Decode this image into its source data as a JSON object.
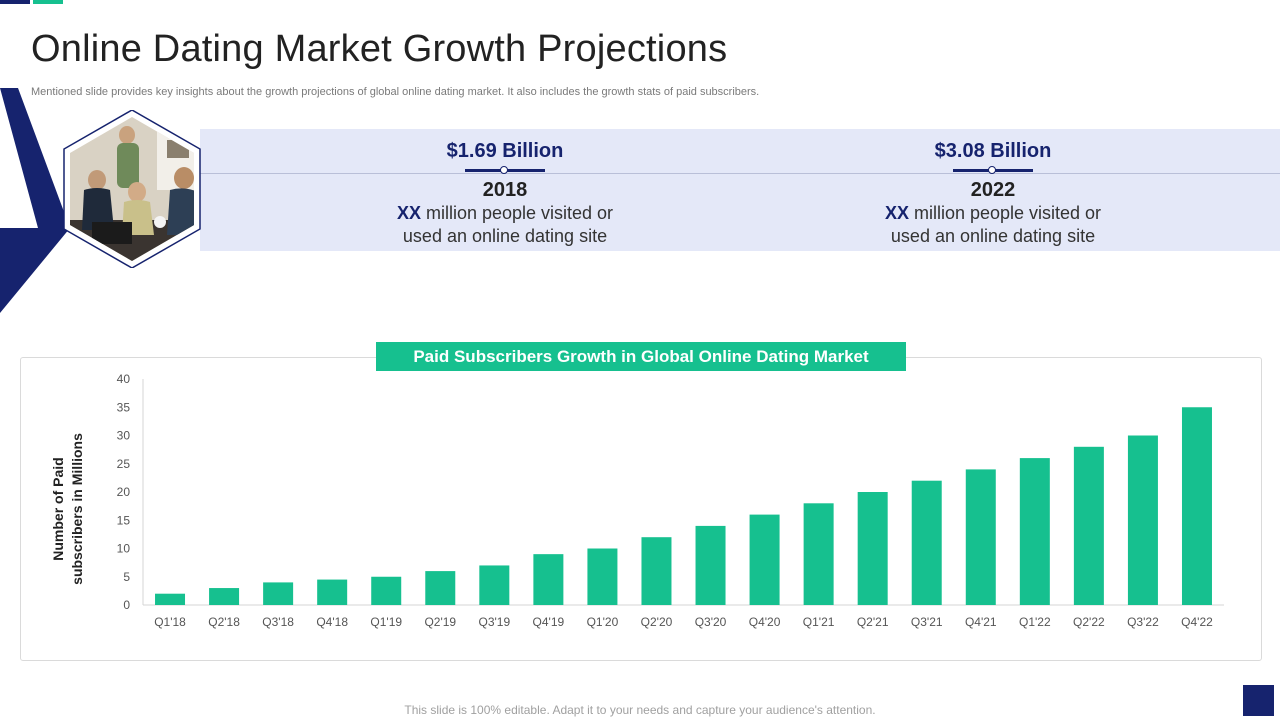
{
  "page": {
    "title": "Online Dating Market Growth Projections",
    "subtitle": "Mentioned slide provides key insights about the growth projections of global online dating market. It also includes the growth  stats of paid subscribers.",
    "footer": "This slide is 100% editable. Adapt it to your needs and capture your audience's attention."
  },
  "stats": [
    {
      "amount": "$1.69 Billion",
      "year": "2018",
      "highlight": "XX",
      "desc_line1": " million people visited or",
      "desc_line2": "used an online dating site"
    },
    {
      "amount": "$3.08 Billion",
      "year": "2022",
      "highlight": "XX",
      "desc_line1": " million people visited or",
      "desc_line2": "used an online dating site"
    }
  ],
  "colors": {
    "navy": "#16236e",
    "green": "#16c08f",
    "band": "#e4e8f8"
  },
  "chart_data": {
    "type": "bar",
    "title": "Paid Subscribers Growth in Global Online Dating Market",
    "xlabel": "",
    "ylabel_line1": "Number of Paid",
    "ylabel_line2": "subscribers in Millions",
    "categories": [
      "Q1'18",
      "Q2'18",
      "Q3'18",
      "Q4'18",
      "Q1'19",
      "Q2'19",
      "Q3'19",
      "Q4'19",
      "Q1'20",
      "Q2'20",
      "Q3'20",
      "Q4'20",
      "Q1'21",
      "Q2'21",
      "Q3'21",
      "Q4'21",
      "Q1'22",
      "Q2'22",
      "Q3'22",
      "Q4'22"
    ],
    "values": [
      2,
      3,
      4,
      4.5,
      5,
      6,
      7,
      9,
      10,
      12,
      14,
      16,
      18,
      20,
      22,
      24,
      26,
      28,
      30,
      35
    ],
    "ylim": [
      0,
      40
    ],
    "yticks": [
      0,
      5,
      10,
      15,
      20,
      25,
      30,
      35,
      40
    ],
    "grid": false,
    "legend": "none"
  }
}
